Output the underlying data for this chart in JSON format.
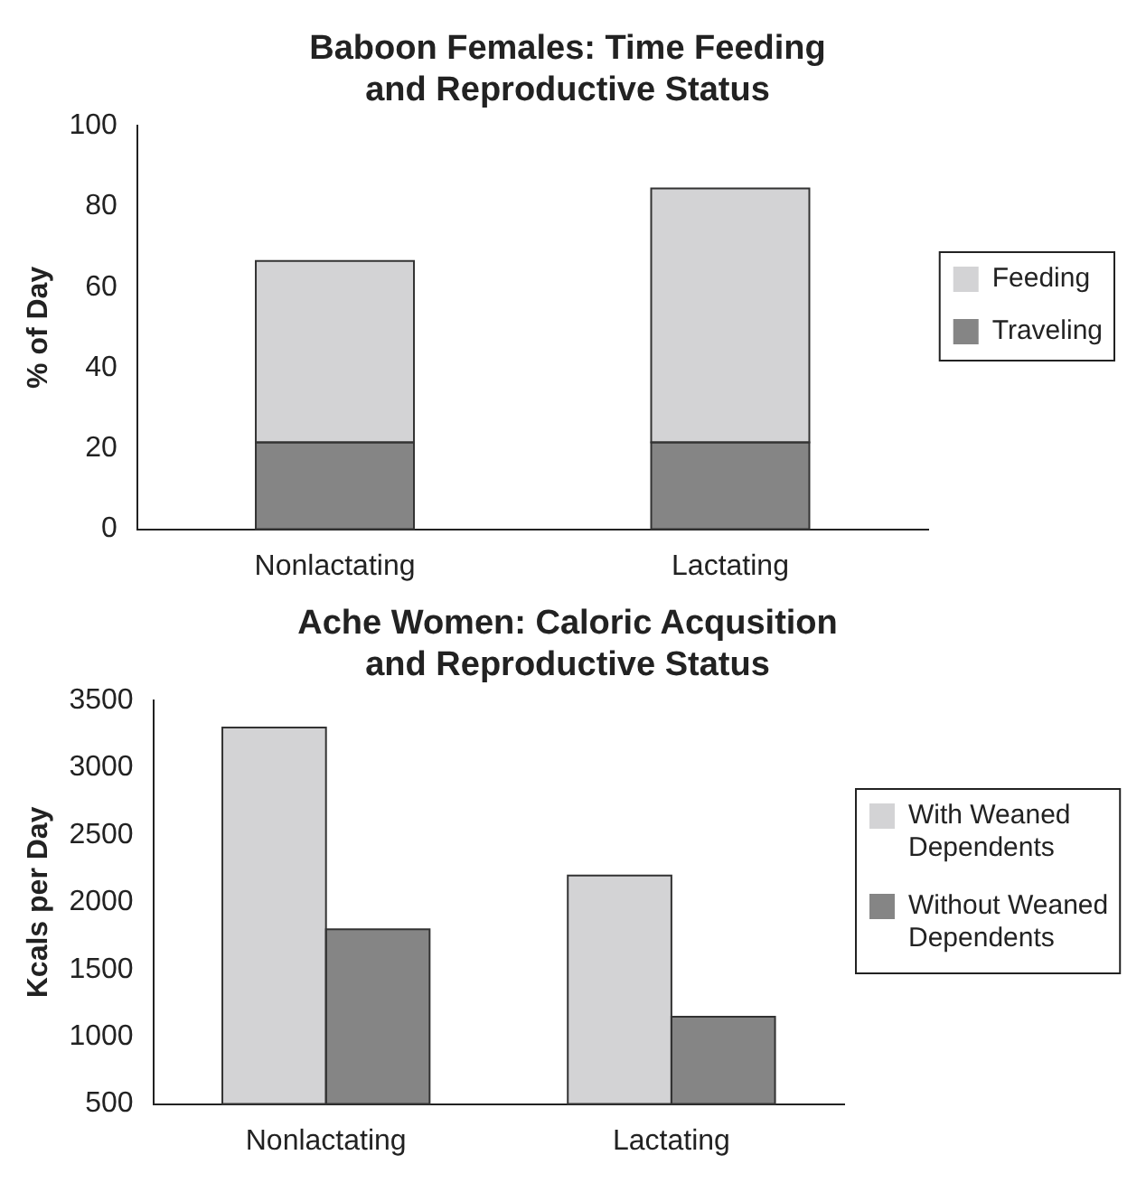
{
  "chart_data": [
    {
      "type": "bar",
      "title": "Baboon Females: Time Feeding and Reproductive Status",
      "ylabel": "% of Day",
      "categories": [
        "Nonlactating",
        "Lactating"
      ],
      "stacked": true,
      "series": [
        {
          "name": "Traveling",
          "color": "#858585",
          "values": [
            21.5,
            21.5
          ]
        },
        {
          "name": "Feeding",
          "color": "#d3d3d5",
          "values": [
            45,
            63
          ]
        }
      ],
      "ylim": [
        0,
        100
      ],
      "yticks": [
        0,
        20,
        40,
        60,
        80,
        100
      ],
      "grid": false,
      "legend": "right"
    },
    {
      "type": "bar",
      "title": "Ache Women: Caloric Acqusition and Reproductive Status",
      "ylabel": "Kcals per Day",
      "categories": [
        "Nonlactating",
        "Lactating"
      ],
      "series": [
        {
          "name": "With Weaned Dependents",
          "color": "#d3d3d5",
          "values": [
            3300,
            2200
          ]
        },
        {
          "name": "Without Weaned Dependents",
          "color": "#858585",
          "values": [
            1800,
            1150
          ]
        }
      ],
      "ylim": [
        500,
        3500
      ],
      "yticks": [
        500,
        1000,
        1500,
        2000,
        2500,
        3000,
        3500
      ],
      "grid": false,
      "legend": "right"
    }
  ]
}
